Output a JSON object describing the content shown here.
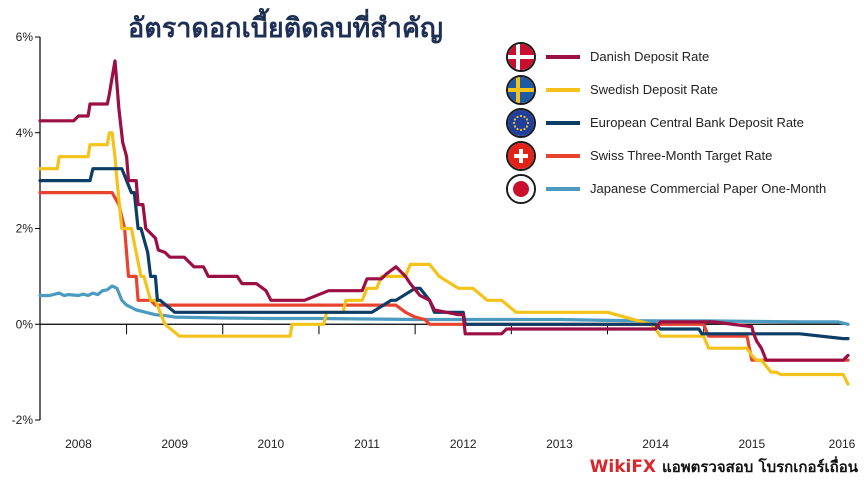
{
  "chart_data": {
    "type": "line",
    "title": "อัตราดอกเบี้ยติดลบที่สำคัญ",
    "xlabel": "",
    "ylabel": "",
    "ylim": [
      -2,
      6
    ],
    "xlim": [
      2007.6,
      2016.0
    ],
    "y_ticks": [
      -2,
      0,
      2,
      4,
      6
    ],
    "y_tick_labels": [
      "-2%",
      "0%",
      "2%",
      "4%",
      "6%"
    ],
    "x_ticks": [
      2008,
      2009,
      2010,
      2011,
      2012,
      2013,
      2014,
      2015,
      2016
    ],
    "x_tick_labels": [
      "2008",
      "2009",
      "2010",
      "2011",
      "2012",
      "2013",
      "2014",
      "2015",
      "2016"
    ],
    "grid": false,
    "legend_position": "top-right",
    "series": [
      {
        "name": "Danish Deposit Rate",
        "color": "#9b0f44",
        "flag_icon": "denmark-flag-icon",
        "x": [
          2007.6,
          2007.95,
          2008.0,
          2008.1,
          2008.12,
          2008.3,
          2008.32,
          2008.35,
          2008.38,
          2008.4,
          2008.42,
          2008.46,
          2008.5,
          2008.52,
          2008.55,
          2008.6,
          2008.62,
          2008.67,
          2008.7,
          2008.8,
          2008.83,
          2008.9,
          2008.95,
          2009.1,
          2009.2,
          2009.3,
          2009.35,
          2009.45,
          2009.55,
          2009.65,
          2009.7,
          2009.85,
          2009.95,
          2010.0,
          2010.3,
          2010.35,
          2010.6,
          2010.75,
          2010.8,
          2010.95,
          2011.0,
          2011.15,
          2011.2,
          2011.3,
          2011.4,
          2011.45,
          2011.55,
          2011.65,
          2011.7,
          2011.95,
          2012.0,
          2012.02,
          2012.4,
          2012.45,
          2013.0,
          2013.05,
          2013.5,
          2014.0,
          2014.05,
          2014.5,
          2014.55,
          2014.6,
          2015.0,
          2015.02,
          2015.05,
          2015.1,
          2015.15,
          2015.95,
          2016.0
        ],
        "values": [
          4.25,
          4.25,
          4.35,
          4.35,
          4.6,
          4.6,
          4.8,
          5.15,
          5.5,
          5.0,
          4.5,
          3.8,
          3.5,
          3.0,
          3.0,
          3.0,
          2.5,
          2.5,
          2.0,
          1.8,
          1.55,
          1.5,
          1.4,
          1.4,
          1.2,
          1.2,
          1.0,
          1.0,
          1.0,
          1.0,
          0.85,
          0.85,
          0.7,
          0.5,
          0.5,
          0.5,
          0.7,
          0.7,
          0.7,
          0.7,
          0.95,
          0.95,
          1.05,
          1.2,
          1.0,
          0.85,
          0.6,
          0.5,
          0.3,
          0.2,
          0.2,
          -0.2,
          -0.2,
          -0.1,
          -0.1,
          -0.1,
          -0.1,
          -0.1,
          0.05,
          0.05,
          0.05,
          0.05,
          -0.05,
          -0.2,
          -0.35,
          -0.5,
          -0.75,
          -0.75,
          -0.65
        ]
      },
      {
        "name": "Swedish Deposit Rate",
        "color": "#f5c219",
        "flag_icon": "sweden-flag-icon",
        "x": [
          2007.6,
          2007.78,
          2007.8,
          2008.1,
          2008.12,
          2008.3,
          2008.32,
          2008.35,
          2008.38,
          2008.4,
          2008.45,
          2008.55,
          2008.65,
          2008.68,
          2008.75,
          2008.8,
          2008.9,
          2009.05,
          2009.3,
          2009.35,
          2009.5,
          2010.2,
          2010.22,
          2010.55,
          2010.58,
          2010.75,
          2010.78,
          2010.95,
          2011.0,
          2011.1,
          2011.15,
          2011.4,
          2011.45,
          2011.5,
          2011.65,
          2011.75,
          2011.95,
          2012.1,
          2012.25,
          2012.4,
          2012.55,
          2013.0,
          2013.5,
          2013.95,
          2014.0,
          2014.05,
          2014.5,
          2014.55,
          2014.6,
          2014.95,
          2015.0,
          2015.05,
          2015.1,
          2015.2,
          2015.25,
          2015.3,
          2015.95,
          2016.0
        ],
        "values": [
          3.25,
          3.25,
          3.5,
          3.5,
          3.75,
          3.75,
          4.0,
          4.0,
          3.5,
          3.0,
          2.0,
          2.0,
          1.0,
          1.0,
          0.5,
          0.5,
          0.0,
          -0.25,
          -0.25,
          -0.25,
          -0.25,
          -0.25,
          0.0,
          0.0,
          0.25,
          0.25,
          0.5,
          0.5,
          0.75,
          0.75,
          1.0,
          1.0,
          1.25,
          1.25,
          1.25,
          1.0,
          0.75,
          0.75,
          0.5,
          0.5,
          0.25,
          0.25,
          0.25,
          0.0,
          -0.1,
          -0.25,
          -0.25,
          -0.5,
          -0.5,
          -0.5,
          -0.65,
          -0.75,
          -0.75,
          -1.0,
          -1.0,
          -1.05,
          -1.05,
          -1.25
        ]
      },
      {
        "name": "European Central Bank Deposit Rate",
        "color": "#0b3d66",
        "flag_icon": "eu-flag-icon",
        "x": [
          2007.6,
          2008.12,
          2008.15,
          2008.4,
          2008.45,
          2008.55,
          2008.58,
          2008.62,
          2008.65,
          2008.72,
          2008.75,
          2008.8,
          2008.82,
          2008.85,
          2009.0,
          2009.5,
          2010.0,
          2010.5,
          2010.8,
          2011.0,
          2011.05,
          2011.25,
          2011.3,
          2011.5,
          2011.55,
          2011.65,
          2011.7,
          2011.95,
          2012.0,
          2012.02,
          2012.5,
          2013.0,
          2013.5,
          2014.0,
          2014.05,
          2014.45,
          2014.48,
          2014.55,
          2014.6,
          2015.0,
          2015.5,
          2015.95,
          2016.0
        ],
        "values": [
          3.0,
          3.0,
          3.25,
          3.25,
          3.25,
          2.75,
          2.75,
          2.0,
          2.0,
          1.5,
          1.0,
          1.0,
          0.5,
          0.5,
          0.25,
          0.25,
          0.25,
          0.25,
          0.25,
          0.25,
          0.25,
          0.5,
          0.5,
          0.75,
          0.75,
          0.5,
          0.25,
          0.25,
          0.25,
          0.0,
          0.0,
          0.0,
          0.0,
          0.0,
          -0.1,
          -0.1,
          -0.2,
          -0.2,
          -0.2,
          -0.2,
          -0.2,
          -0.3,
          -0.3
        ]
      },
      {
        "name": "Swiss Three-Month Target Rate",
        "color": "#e8432f",
        "flag_icon": "switzerland-flag-icon",
        "x": [
          2007.6,
          2008.2,
          2008.25,
          2008.35,
          2008.42,
          2008.48,
          2008.52,
          2008.55,
          2008.6,
          2008.62,
          2008.75,
          2008.8,
          2009.0,
          2009.5,
          2010.0,
          2010.5,
          2011.0,
          2011.3,
          2011.4,
          2011.5,
          2011.6,
          2011.65,
          2012.0,
          2012.5,
          2013.0,
          2013.5,
          2014.0,
          2014.5,
          2014.55,
          2014.6,
          2014.95,
          2015.0,
          2015.05,
          2015.1,
          2015.95,
          2016.0
        ],
        "values": [
          2.75,
          2.75,
          2.75,
          2.75,
          2.5,
          2.0,
          1.0,
          1.0,
          1.0,
          0.5,
          0.5,
          0.4,
          0.4,
          0.4,
          0.4,
          0.4,
          0.4,
          0.4,
          0.25,
          0.15,
          0.1,
          0.0,
          0.0,
          0.0,
          0.0,
          0.0,
          0.0,
          0.0,
          -0.25,
          -0.25,
          -0.25,
          -0.75,
          -0.75,
          -0.75,
          -0.75,
          -0.75
        ]
      },
      {
        "name": "Japanese Commercial Paper One-Month",
        "color": "#4a9bbf",
        "flag_icon": "japan-flag-icon",
        "x": [
          2007.6,
          2007.7,
          2007.8,
          2007.85,
          2007.9,
          2008.0,
          2008.05,
          2008.1,
          2008.15,
          2008.2,
          2008.25,
          2008.3,
          2008.35,
          2008.4,
          2008.45,
          2008.5,
          2008.55,
          2008.6,
          2008.7,
          2008.8,
          2008.9,
          2009.0,
          2009.5,
          2010.0,
          2010.5,
          2011.0,
          2011.5,
          2012.0,
          2012.5,
          2013.0,
          2013.5,
          2014.0,
          2014.5,
          2015.0,
          2015.5,
          2015.9,
          2016.0
        ],
        "values": [
          0.6,
          0.6,
          0.65,
          0.6,
          0.62,
          0.6,
          0.63,
          0.6,
          0.65,
          0.62,
          0.7,
          0.72,
          0.8,
          0.75,
          0.5,
          0.4,
          0.35,
          0.3,
          0.25,
          0.2,
          0.18,
          0.15,
          0.13,
          0.12,
          0.12,
          0.11,
          0.1,
          0.1,
          0.1,
          0.1,
          0.08,
          0.07,
          0.07,
          0.06,
          0.05,
          0.05,
          0.0
        ]
      }
    ]
  },
  "footer": {
    "brand": "WikiFX",
    "text": "แอพตรวจสอบ โบรกเกอร์เถื่อน"
  }
}
